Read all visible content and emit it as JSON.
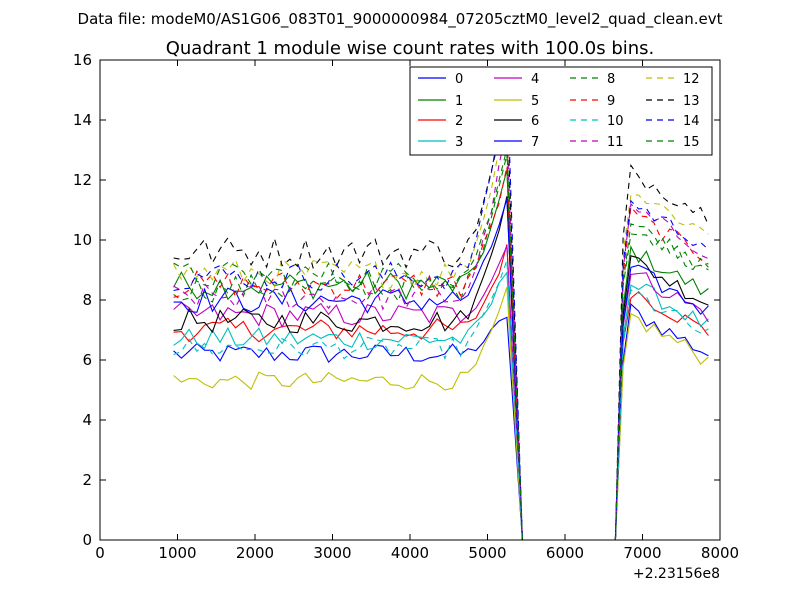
{
  "header": {
    "supertitle": "Data file: modeM0/AS1G06_083T01_9000000984_07205cztM0_level2_quad_clean.evt"
  },
  "chart_data": {
    "type": "line",
    "title": "Quadrant 1 module wise count rates with 100.0s bins.",
    "xlabel": "",
    "ylabel": "",
    "xlim": [
      0,
      8000
    ],
    "ylim": [
      0,
      16
    ],
    "x_offset_label": "+2.23156e8",
    "xticks": [
      0,
      1000,
      2000,
      3000,
      4000,
      5000,
      6000,
      7000,
      8000
    ],
    "xtick_labels": [
      "0",
      "1000",
      "2000",
      "3000",
      "4000",
      "5000",
      "6000",
      "7000",
      "8000"
    ],
    "yticks": [
      0,
      2,
      4,
      6,
      8,
      10,
      12,
      14,
      16
    ],
    "ytick_labels": [
      "0",
      "2",
      "4",
      "6",
      "8",
      "10",
      "12",
      "14",
      "16"
    ],
    "grid": false,
    "legend_position": "top-right",
    "x": [
      950,
      1050,
      1150,
      1250,
      1350,
      1450,
      1550,
      1650,
      1750,
      1850,
      1950,
      2050,
      2150,
      2250,
      2350,
      2450,
      2550,
      2650,
      2750,
      2850,
      2950,
      3050,
      3150,
      3250,
      3350,
      3450,
      3550,
      3650,
      3750,
      3850,
      3950,
      4050,
      4150,
      4250,
      4350,
      4450,
      4550,
      4650,
      4750,
      4850,
      4950,
      5050,
      5150,
      5250,
      5350,
      5450,
      5550,
      5650,
      5750,
      5850,
      5950,
      6050,
      6150,
      6250,
      6350,
      6450,
      6550,
      6650,
      6750,
      6850,
      6950,
      7050,
      7150,
      7250,
      7350,
      7450,
      7550,
      7650,
      7750,
      7850
    ],
    "gap": {
      "x_start": 5450,
      "x_end": 6650
    },
    "series": [
      {
        "name": "0",
        "color": "#0000ff",
        "dash": "solid",
        "pre": 6.2,
        "peak": 7.5,
        "post": 6.6
      },
      {
        "name": "1",
        "color": "#008000",
        "dash": "solid",
        "pre": 8.5,
        "peak": 12.2,
        "post": 8.6
      },
      {
        "name": "2",
        "color": "#ff0000",
        "dash": "solid",
        "pre": 7.0,
        "peak": 9.7,
        "post": 7.3
      },
      {
        "name": "3",
        "color": "#00bfbf",
        "dash": "solid",
        "pre": 6.7,
        "peak": 9.0,
        "post": 7.5
      },
      {
        "name": "4",
        "color": "#bf00bf",
        "dash": "solid",
        "pre": 7.5,
        "peak": 9.8,
        "post": 7.9
      },
      {
        "name": "5",
        "color": "#bfbf00",
        "dash": "solid",
        "pre": 5.3,
        "peak": 8.3,
        "post": 6.4
      },
      {
        "name": "6",
        "color": "#000000",
        "dash": "solid",
        "pre": 7.3,
        "peak": 11.6,
        "post": 8.3
      },
      {
        "name": "7",
        "color": "#0000ff",
        "dash": "solid",
        "pre": 8.0,
        "peak": 11.4,
        "post": 8.0
      },
      {
        "name": "8",
        "color": "#008000",
        "dash": "dashed",
        "pre": 8.4,
        "peak": 13.0,
        "post": 9.5
      },
      {
        "name": "9",
        "color": "#ff0000",
        "dash": "dashed",
        "pre": 8.5,
        "peak": 12.3,
        "post": 9.8
      },
      {
        "name": "10",
        "color": "#00bfbf",
        "dash": "dashed",
        "pre": 6.4,
        "peak": 9.4,
        "post": 7.2
      },
      {
        "name": "11",
        "color": "#bf00bf",
        "dash": "dashed",
        "pre": 8.1,
        "peak": 13.8,
        "post": 10.0
      },
      {
        "name": "12",
        "color": "#bfbf00",
        "dash": "dashed",
        "pre": 8.9,
        "peak": 14.5,
        "post": 10.6
      },
      {
        "name": "13",
        "color": "#000000",
        "dash": "dashed",
        "pre": 9.6,
        "peak": 14.6,
        "post": 11.2
      },
      {
        "name": "14",
        "color": "#0000ff",
        "dash": "dashed",
        "pre": 8.8,
        "peak": 15.5,
        "post": 10.2
      },
      {
        "name": "15",
        "color": "#008000",
        "dash": "dashed",
        "pre": 8.8,
        "peak": 13.0,
        "post": 9.4
      }
    ]
  }
}
